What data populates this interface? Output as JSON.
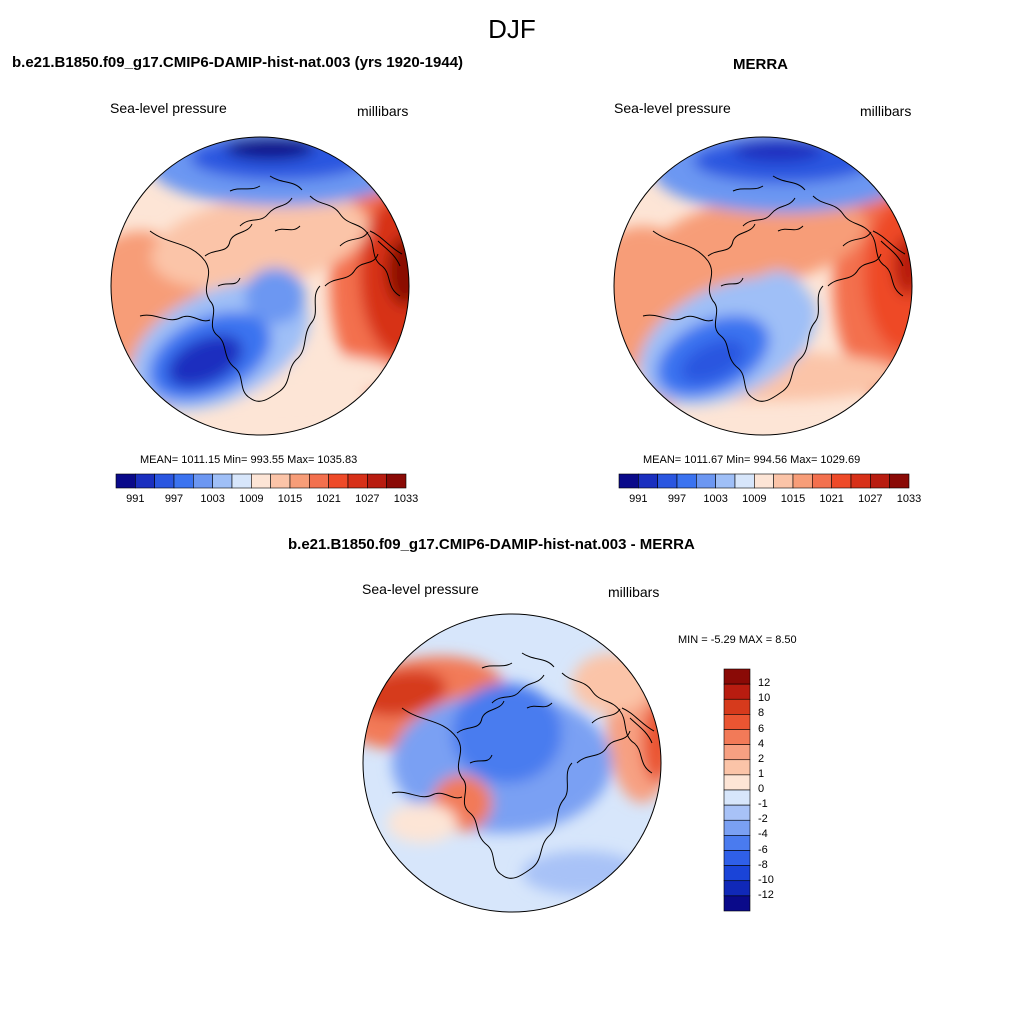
{
  "figure_title": "DJF",
  "colors": {
    "pressure_scale": [
      "#0a0a8a",
      "#1a2fbf",
      "#2a56e0",
      "#3b73f0",
      "#6c97f2",
      "#9fbff7",
      "#d7e6fb",
      "#fde5d6",
      "#fbc4a8",
      "#f79d78",
      "#f3704e",
      "#ee4a28",
      "#d73018",
      "#b81c10",
      "#8a0a06"
    ],
    "diff_scale": [
      "#0a0a8a",
      "#1028b8",
      "#1a44d8",
      "#2f5fe8",
      "#4a7bef",
      "#7aa0f3",
      "#a8c2f7",
      "#d7e6fb",
      "#fde5d6",
      "#fbc4a8",
      "#f7a082",
      "#f27a58",
      "#ea5532",
      "#d63a1c",
      "#b81c10",
      "#8a0a06"
    ],
    "land_outline": "#000000"
  },
  "panels": [
    {
      "title": "b.e21.B1850.f09_g17.CMIP6-DAMIP-hist-nat.003 (yrs 1920-1944)",
      "variable": "Sea-level pressure",
      "units": "millibars",
      "stats_text": "MEAN= 1011.15  Min= 993.55  Max= 1035.83"
    },
    {
      "title": "MERRA",
      "variable": "Sea-level pressure",
      "units": "millibars",
      "stats_text": "MEAN= 1011.67  Min= 994.56  Max= 1029.69"
    },
    {
      "title": "b.e21.B1850.f09_g17.CMIP6-DAMIP-hist-nat.003 - MERRA",
      "variable": "Sea-level pressure",
      "units": "millibars",
      "stats_text": "MIN =  -5.29 MAX =   8.50"
    }
  ],
  "colorbar_pressure": {
    "tick_labels": [
      "991",
      "997",
      "1003",
      "1009",
      "1015",
      "1021",
      "1027",
      "1033"
    ]
  },
  "colorbar_diff": {
    "tick_labels": [
      "12",
      "10",
      "8",
      "6",
      "4",
      "2",
      "1",
      "0",
      "-1",
      "-2",
      "-4",
      "-6",
      "-8",
      "-10",
      "-12"
    ]
  },
  "chart_data": [
    {
      "type": "heatmap",
      "title": "b.e21.B1850.f09_g17.CMIP6-DAMIP-hist-nat.003 (yrs 1920-1944)",
      "variable": "Sea-level pressure",
      "units": "millibars",
      "projection": "north polar stereographic",
      "mean": 1011.15,
      "min": 993.55,
      "max": 1035.83,
      "contour_levels": [
        991,
        994,
        997,
        1000,
        1003,
        1006,
        1009,
        1012,
        1015,
        1018,
        1021,
        1024,
        1027,
        1030,
        1033
      ]
    },
    {
      "type": "heatmap",
      "title": "MERRA",
      "variable": "Sea-level pressure",
      "units": "millibars",
      "projection": "north polar stereographic",
      "mean": 1011.67,
      "min": 994.56,
      "max": 1029.69,
      "contour_levels": [
        991,
        994,
        997,
        1000,
        1003,
        1006,
        1009,
        1012,
        1015,
        1018,
        1021,
        1024,
        1027,
        1030,
        1033
      ]
    },
    {
      "type": "heatmap",
      "title": "b.e21.B1850.f09_g17.CMIP6-DAMIP-hist-nat.003 - MERRA",
      "variable": "Sea-level pressure",
      "units": "millibars",
      "projection": "north polar stereographic",
      "min": -5.29,
      "max": 8.5,
      "contour_levels": [
        -12,
        -10,
        -8,
        -6,
        -4,
        -2,
        -1,
        0,
        1,
        2,
        4,
        6,
        8,
        10,
        12
      ]
    }
  ]
}
